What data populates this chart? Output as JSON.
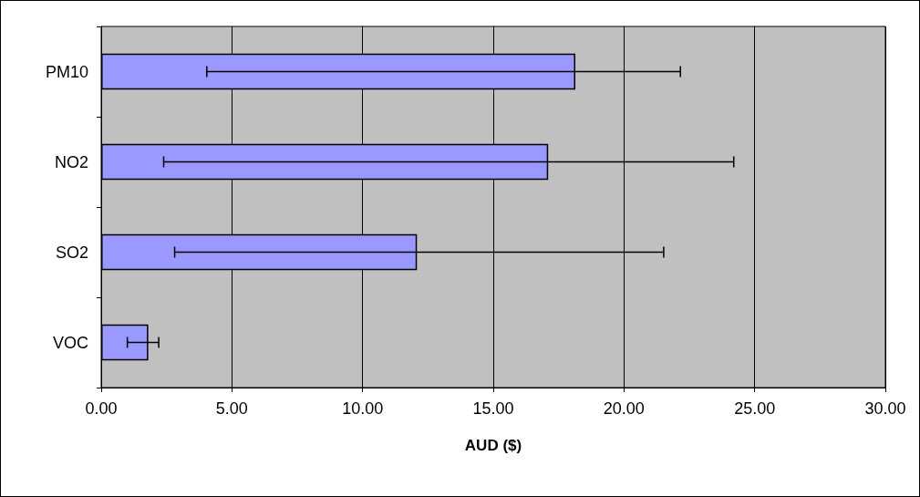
{
  "chart_data": {
    "type": "bar",
    "orientation": "horizontal",
    "xlabel": "AUD ($)",
    "categories": [
      "PM10",
      "NO2",
      "SO2",
      "VOC"
    ],
    "values": [
      18.14,
      17.1,
      12.08,
      1.8
    ],
    "errors": [
      [
        4.04,
        22.16
      ],
      [
        2.39,
        24.2
      ],
      [
        2.81,
        21.52
      ],
      [
        1.0,
        2.2
      ]
    ],
    "color": "#9999ff",
    "xlim": [
      0,
      30
    ],
    "xticks": [
      {
        "value": 0,
        "label": "0.00"
      },
      {
        "value": 5,
        "label": "5.00"
      },
      {
        "value": 10,
        "label": "10.00"
      },
      {
        "value": 15,
        "label": "15.00"
      },
      {
        "value": 20,
        "label": "20.00"
      },
      {
        "value": 25,
        "label": "25.00"
      },
      {
        "value": 30,
        "label": "30.00"
      }
    ],
    "grid": "x"
  }
}
